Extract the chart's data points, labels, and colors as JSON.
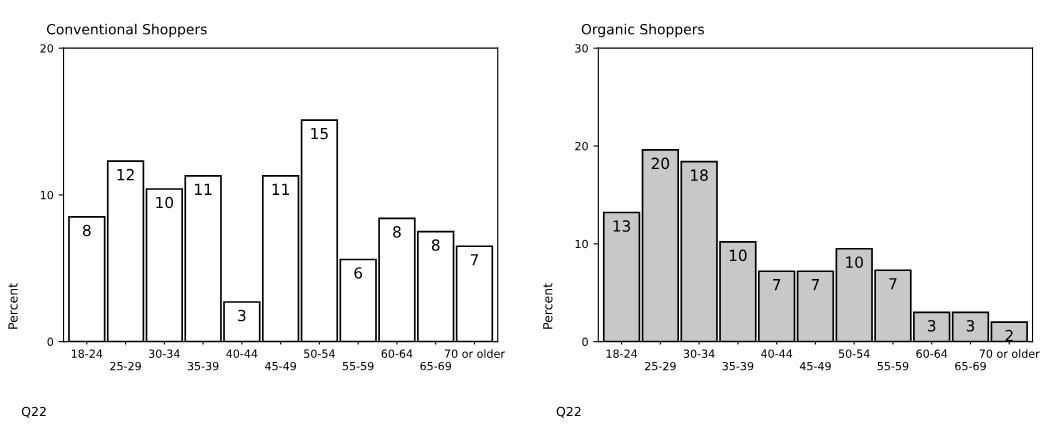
{
  "chart_data": [
    {
      "type": "bar",
      "title": "Conventional Shoppers",
      "ylabel": "Percent",
      "annotations": [
        "Q22"
      ],
      "categories": [
        "18-24",
        "25-29",
        "30-34",
        "35-39",
        "40-44",
        "45-49",
        "50-54",
        "55-59",
        "60-64",
        "65-69",
        "70 or older"
      ],
      "values": [
        8.5,
        12.3,
        10.4,
        11.3,
        2.7,
        11.3,
        15.1,
        5.6,
        8.4,
        7.5,
        6.5
      ],
      "value_labels": [
        "8",
        "12",
        "10",
        "11",
        "3",
        "11",
        "15",
        "6",
        "8",
        "8",
        "7"
      ],
      "color": "#ffffff",
      "ylim": [
        0,
        20
      ],
      "yticks": [
        0,
        10,
        20
      ],
      "grid": false
    },
    {
      "type": "bar",
      "title": "Organic Shoppers",
      "ylabel": "Percent",
      "annotations": [
        "Q22"
      ],
      "categories": [
        "18-24",
        "25-29",
        "30-34",
        "35-39",
        "40-44",
        "45-49",
        "50-54",
        "55-59",
        "60-64",
        "65-69",
        "70 or older"
      ],
      "values": [
        13.2,
        19.6,
        18.4,
        10.2,
        7.2,
        7.2,
        9.5,
        7.3,
        3.0,
        3.0,
        2.0
      ],
      "value_labels": [
        "13",
        "20",
        "18",
        "10",
        "7",
        "7",
        "10",
        "7",
        "3",
        "3",
        "2"
      ],
      "color": "#c8c8c8",
      "ylim": [
        0,
        30
      ],
      "yticks": [
        0,
        10,
        20,
        30
      ],
      "grid": false
    }
  ]
}
